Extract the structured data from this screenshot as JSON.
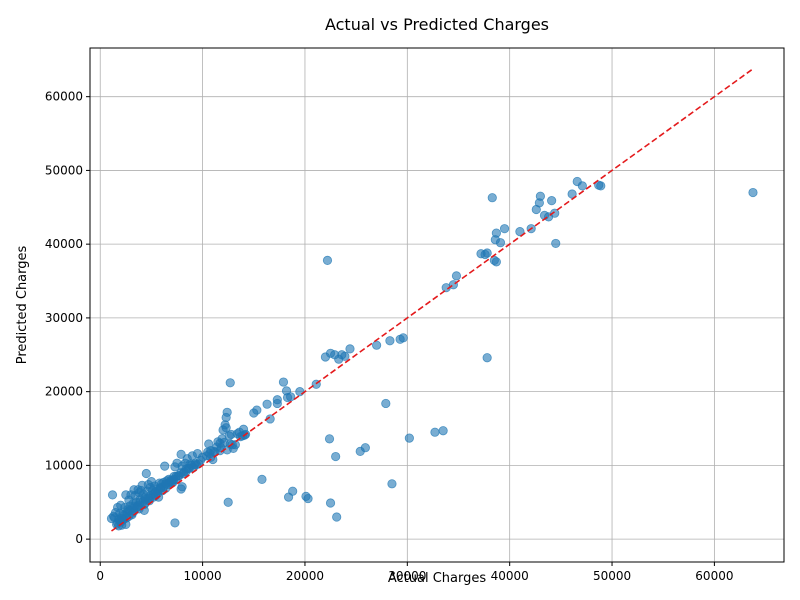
{
  "chart_data": {
    "type": "scatter",
    "title": "Actual vs Predicted Charges",
    "xlabel": "Actual Charges",
    "ylabel": "Predicted Charges",
    "xlim": [
      -1000,
      66800
    ],
    "ylim": [
      -3100,
      66600
    ],
    "xticks": [
      0,
      10000,
      20000,
      30000,
      40000,
      50000,
      60000
    ],
    "yticks": [
      0,
      10000,
      20000,
      30000,
      40000,
      50000,
      60000
    ],
    "grid": true,
    "reference_line": {
      "from": [
        1100,
        1100
      ],
      "to": [
        63800,
        63800
      ],
      "color": "#e41a1c",
      "style": "dashed"
    },
    "point_color": "#1f77b4",
    "points": [
      [
        63770,
        47000
      ],
      [
        48900,
        47900
      ],
      [
        48700,
        48000
      ],
      [
        47100,
        47900
      ],
      [
        46600,
        48500
      ],
      [
        46100,
        46800
      ],
      [
        44100,
        45900
      ],
      [
        43000,
        46500
      ],
      [
        42900,
        45600
      ],
      [
        42600,
        44700
      ],
      [
        44400,
        44200
      ],
      [
        43800,
        43700
      ],
      [
        43400,
        43900
      ],
      [
        44500,
        40100
      ],
      [
        42100,
        42100
      ],
      [
        41000,
        41700
      ],
      [
        39500,
        42100
      ],
      [
        39100,
        40200
      ],
      [
        38700,
        41500
      ],
      [
        38600,
        40600
      ],
      [
        38500,
        37800
      ],
      [
        38700,
        37600
      ],
      [
        38300,
        46300
      ],
      [
        37800,
        38800
      ],
      [
        37600,
        38600
      ],
      [
        37200,
        38700
      ],
      [
        37800,
        24600
      ],
      [
        34800,
        35700
      ],
      [
        34500,
        34500
      ],
      [
        33800,
        34100
      ],
      [
        33500,
        14700
      ],
      [
        32700,
        14500
      ],
      [
        30200,
        13700
      ],
      [
        29600,
        27300
      ],
      [
        29300,
        27100
      ],
      [
        28300,
        26900
      ],
      [
        28500,
        7500
      ],
      [
        27900,
        18400
      ],
      [
        27000,
        26300
      ],
      [
        25900,
        12400
      ],
      [
        25400,
        11900
      ],
      [
        24400,
        25800
      ],
      [
        23900,
        24800
      ],
      [
        23600,
        25000
      ],
      [
        23300,
        24400
      ],
      [
        22900,
        25000
      ],
      [
        22500,
        25200
      ],
      [
        22000,
        24700
      ],
      [
        22200,
        37800
      ],
      [
        22400,
        13600
      ],
      [
        23000,
        11200
      ],
      [
        23100,
        3000
      ],
      [
        22500,
        4900
      ],
      [
        21100,
        21000
      ],
      [
        20300,
        5500
      ],
      [
        20100,
        5800
      ],
      [
        19500,
        20000
      ],
      [
        18800,
        6500
      ],
      [
        18400,
        5700
      ],
      [
        18600,
        19300
      ],
      [
        18300,
        19200
      ],
      [
        18200,
        20100
      ],
      [
        17900,
        21300
      ],
      [
        17300,
        18900
      ],
      [
        17300,
        18400
      ],
      [
        16600,
        16300
      ],
      [
        16300,
        18300
      ],
      [
        15300,
        17500
      ],
      [
        15000,
        17100
      ],
      [
        15800,
        8100
      ],
      [
        14200,
        14200
      ],
      [
        14000,
        14900
      ],
      [
        13900,
        14000
      ],
      [
        13700,
        13900
      ],
      [
        13400,
        14300
      ],
      [
        13200,
        12800
      ],
      [
        13000,
        12300
      ],
      [
        12800,
        14200
      ],
      [
        12600,
        14000
      ],
      [
        12700,
        21200
      ],
      [
        12500,
        5000
      ],
      [
        12400,
        17200
      ],
      [
        12300,
        16500
      ],
      [
        12300,
        15100
      ],
      [
        12200,
        15500
      ],
      [
        12000,
        14800
      ],
      [
        11900,
        13600
      ],
      [
        11700,
        13000
      ],
      [
        11500,
        13200
      ],
      [
        11400,
        12500
      ],
      [
        11200,
        11800
      ],
      [
        11000,
        10800
      ],
      [
        10800,
        12000
      ],
      [
        10600,
        12900
      ],
      [
        10500,
        11800
      ],
      [
        10400,
        11300
      ],
      [
        10000,
        11100
      ],
      [
        9800,
        10700
      ],
      [
        9500,
        11600
      ],
      [
        9300,
        10300
      ],
      [
        9000,
        11300
      ],
      [
        8800,
        10200
      ],
      [
        8500,
        10900
      ],
      [
        8300,
        10300
      ],
      [
        8000,
        9900
      ],
      [
        7900,
        11500
      ],
      [
        8000,
        7100
      ],
      [
        7900,
        6800
      ],
      [
        7500,
        10300
      ],
      [
        7300,
        9800
      ],
      [
        7200,
        8500
      ],
      [
        7100,
        7700
      ],
      [
        7300,
        2200
      ],
      [
        6900,
        7800
      ],
      [
        6700,
        8100
      ],
      [
        6500,
        7900
      ],
      [
        6300,
        9900
      ],
      [
        6200,
        7700
      ],
      [
        6000,
        7500
      ],
      [
        5900,
        6900
      ],
      [
        5800,
        7600
      ],
      [
        5700,
        5700
      ],
      [
        5500,
        6800
      ],
      [
        5300,
        7200
      ],
      [
        5100,
        6600
      ],
      [
        5000,
        7800
      ],
      [
        4900,
        7000
      ],
      [
        4700,
        7400
      ],
      [
        4600,
        6500
      ],
      [
        4500,
        8900
      ],
      [
        4400,
        5600
      ],
      [
        4300,
        3900
      ],
      [
        4200,
        6100
      ],
      [
        4100,
        7300
      ],
      [
        4000,
        6600
      ],
      [
        3900,
        5400
      ],
      [
        3800,
        6300
      ],
      [
        3700,
        6700
      ],
      [
        3600,
        4400
      ],
      [
        3500,
        5000
      ],
      [
        3400,
        5900
      ],
      [
        3300,
        6700
      ],
      [
        3200,
        4800
      ],
      [
        3100,
        3300
      ],
      [
        3000,
        6000
      ],
      [
        2900,
        4500
      ],
      [
        2800,
        5300
      ],
      [
        2700,
        4000
      ],
      [
        2600,
        3600
      ],
      [
        2500,
        6000
      ],
      [
        2400,
        4300
      ],
      [
        2300,
        3200
      ],
      [
        2200,
        2600
      ],
      [
        2100,
        1900
      ],
      [
        2000,
        4600
      ],
      [
        1900,
        3500
      ],
      [
        1800,
        2700
      ],
      [
        1700,
        4300
      ],
      [
        1600,
        2000
      ],
      [
        1500,
        3600
      ],
      [
        1400,
        2900
      ],
      [
        1300,
        3100
      ],
      [
        1200,
        6000
      ],
      [
        1100,
        2800
      ],
      [
        4800,
        5500
      ],
      [
        5600,
        6200
      ],
      [
        6600,
        7400
      ],
      [
        7600,
        8600
      ],
      [
        8600,
        9600
      ],
      [
        9600,
        10200
      ],
      [
        10800,
        11100
      ],
      [
        11800,
        12400
      ],
      [
        12700,
        12900
      ],
      [
        13600,
        14500
      ],
      [
        3600,
        4300
      ],
      [
        4400,
        4900
      ],
      [
        2600,
        2900
      ],
      [
        3100,
        3500
      ],
      [
        5200,
        5700
      ],
      [
        6100,
        6600
      ],
      [
        7000,
        7700
      ],
      [
        8100,
        8900
      ],
      [
        9100,
        9700
      ],
      [
        2000,
        2300
      ],
      [
        1700,
        2200
      ],
      [
        1900,
        2500
      ],
      [
        2300,
        2700
      ],
      [
        2800,
        3100
      ],
      [
        3300,
        3800
      ],
      [
        3800,
        4100
      ],
      [
        4300,
        4700
      ],
      [
        4800,
        5200
      ],
      [
        5400,
        5900
      ],
      [
        6400,
        6900
      ],
      [
        7400,
        8100
      ],
      [
        8400,
        9200
      ],
      [
        9400,
        10100
      ],
      [
        11100,
        11900
      ],
      [
        12100,
        13100
      ],
      [
        14100,
        14100
      ],
      [
        2200,
        3300
      ],
      [
        2700,
        3800
      ],
      [
        3200,
        4200
      ],
      [
        3700,
        4600
      ],
      [
        4200,
        5100
      ],
      [
        4700,
        5600
      ],
      [
        5200,
        6100
      ],
      [
        5700,
        6600
      ],
      [
        6200,
        7100
      ],
      [
        6700,
        7600
      ],
      [
        7200,
        8100
      ],
      [
        7700,
        8600
      ],
      [
        8200,
        9100
      ],
      [
        8700,
        9600
      ],
      [
        9200,
        10100
      ],
      [
        2500,
        2000
      ],
      [
        1800,
        1800
      ],
      [
        2100,
        2800
      ],
      [
        2900,
        3900
      ],
      [
        3400,
        4500
      ],
      [
        3900,
        5000
      ],
      [
        4400,
        5400
      ],
      [
        4900,
        5900
      ],
      [
        5400,
        6400
      ],
      [
        5900,
        7000
      ],
      [
        6400,
        7500
      ],
      [
        6900,
        8000
      ],
      [
        7400,
        8500
      ],
      [
        7900,
        9000
      ],
      [
        8400,
        9500
      ],
      [
        8900,
        10000
      ],
      [
        12900,
        12800
      ],
      [
        12400,
        12100
      ],
      [
        11700,
        12000
      ],
      [
        10700,
        11600
      ]
    ]
  }
}
